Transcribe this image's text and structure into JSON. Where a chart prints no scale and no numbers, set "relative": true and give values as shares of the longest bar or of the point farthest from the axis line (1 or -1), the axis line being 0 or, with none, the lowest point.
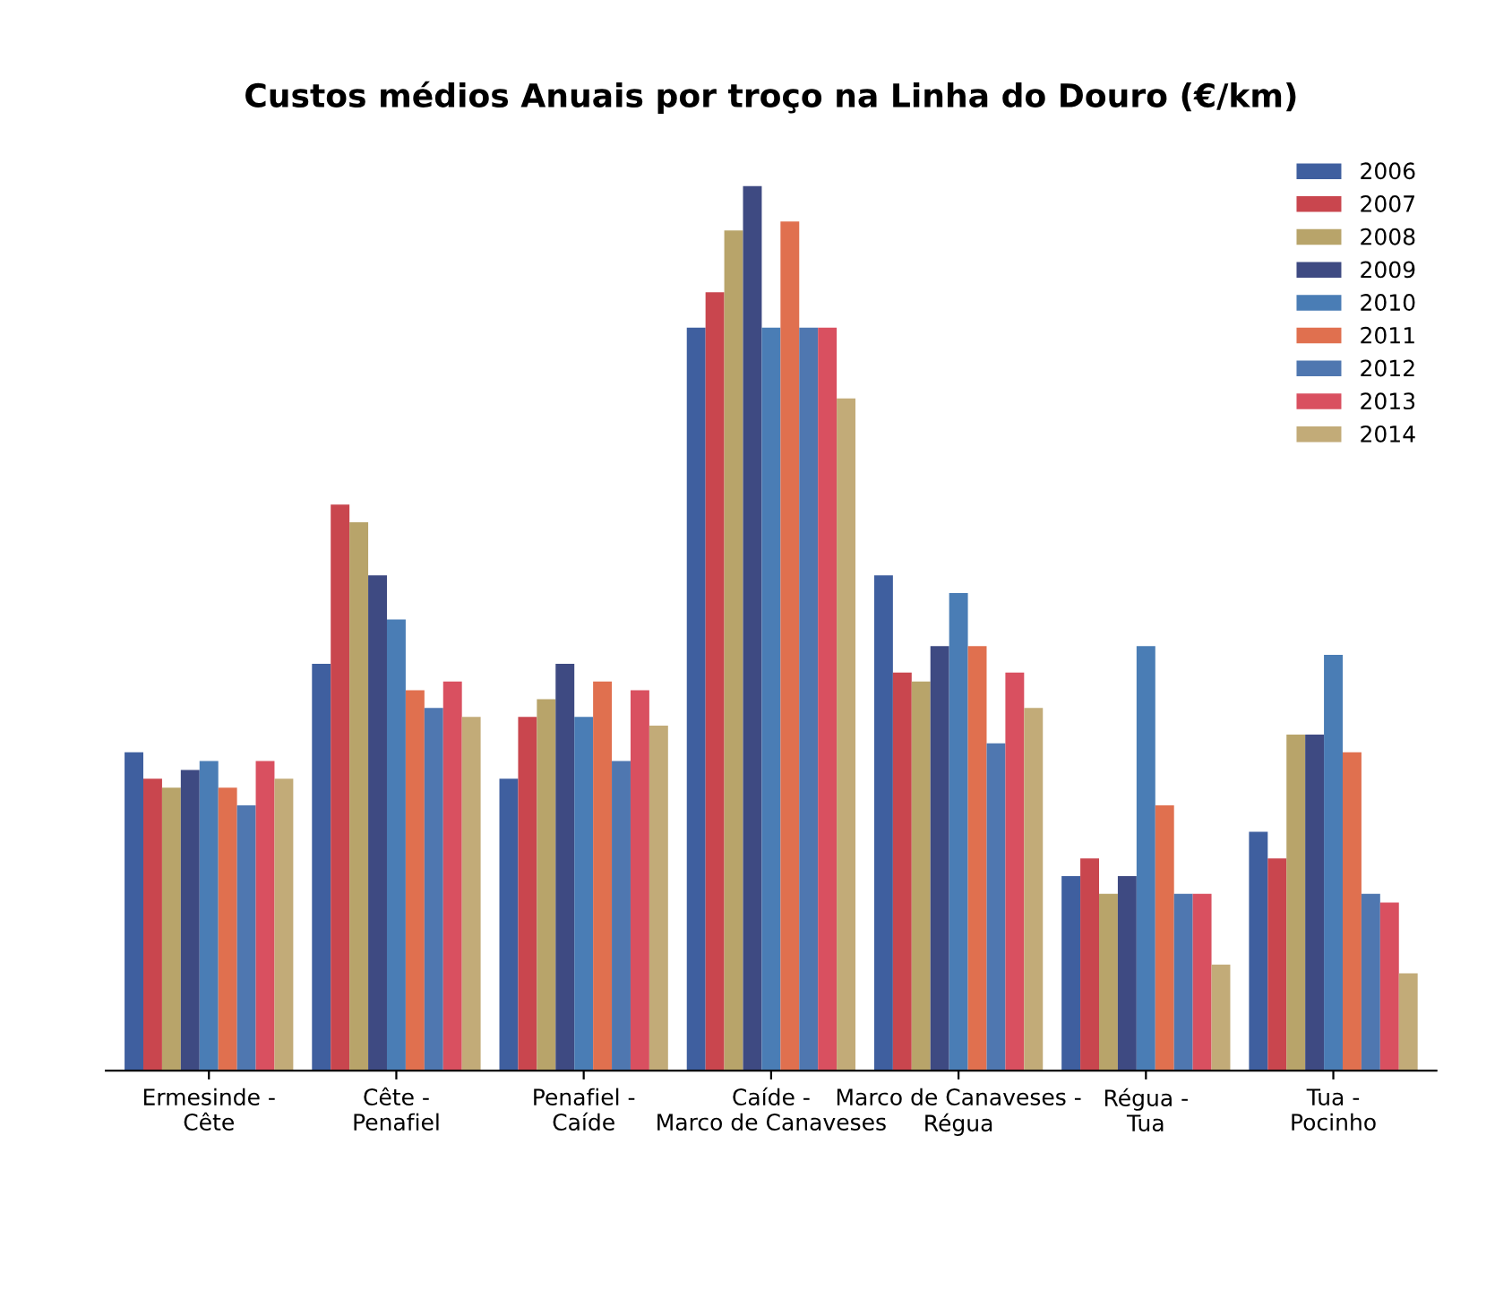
{
  "chart_data": {
    "type": "bar",
    "title": "Custos médios Anuais por troço na Linha do Douro (€/km)",
    "relative": true,
    "legend": "top right",
    "categories": [
      "Ermesinde - Cête",
      "Cête - Penafiel",
      "Penafiel - Caíde",
      "Caíde - Marco de Canaveses",
      "Marco de Canaveses - Régua",
      "Régua - Tua",
      "Tua - Pocinho"
    ],
    "series": [
      {
        "name": "2006",
        "color": "#3f5f9f",
        "values": [
          0.36,
          0.46,
          0.33,
          0.84,
          0.56,
          0.22,
          0.27
        ]
      },
      {
        "name": "2007",
        "color": "#c9464e",
        "values": [
          0.33,
          0.64,
          0.4,
          0.88,
          0.45,
          0.24,
          0.24
        ]
      },
      {
        "name": "2008",
        "color": "#b8a46a",
        "values": [
          0.32,
          0.62,
          0.42,
          0.95,
          0.44,
          0.2,
          0.38
        ]
      },
      {
        "name": "2009",
        "color": "#3e4a82",
        "values": [
          0.34,
          0.56,
          0.46,
          1.0,
          0.48,
          0.22,
          0.38
        ]
      },
      {
        "name": "2010",
        "color": "#4a7db5",
        "values": [
          0.35,
          0.51,
          0.4,
          0.84,
          0.54,
          0.48,
          0.47
        ]
      },
      {
        "name": "2011",
        "color": "#e0704f",
        "values": [
          0.32,
          0.43,
          0.44,
          0.96,
          0.48,
          0.3,
          0.36
        ]
      },
      {
        "name": "2012",
        "color": "#4f77b0",
        "values": [
          0.3,
          0.41,
          0.35,
          0.84,
          0.37,
          0.2,
          0.2
        ]
      },
      {
        "name": "2013",
        "color": "#d95060",
        "values": [
          0.35,
          0.44,
          0.43,
          0.84,
          0.45,
          0.2,
          0.19
        ]
      },
      {
        "name": "2014",
        "color": "#c2ab78",
        "values": [
          0.33,
          0.4,
          0.39,
          0.76,
          0.41,
          0.12,
          0.11
        ]
      }
    ]
  }
}
